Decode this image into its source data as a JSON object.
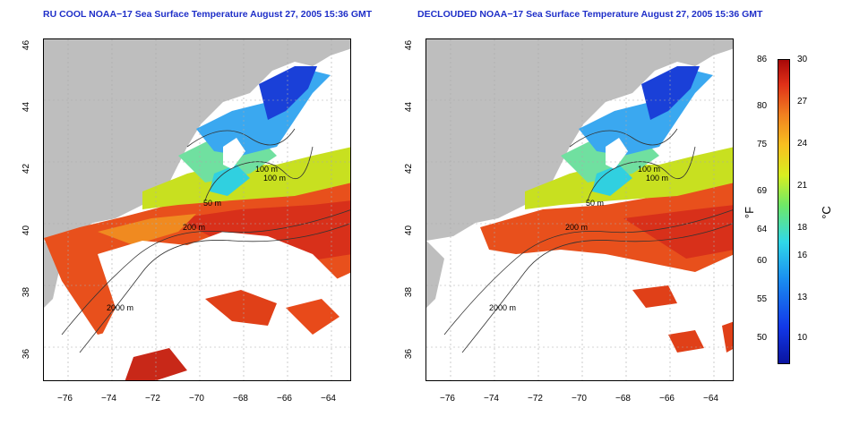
{
  "titles": {
    "left": "RU COOL NOAA−17 Sea Surface Temperature August 27, 2005 15:36 GMT",
    "right": "DECLOUDED NOAA−17 Sea Surface Temperature August 27, 2005 15:36 GMT"
  },
  "axes": {
    "lat_ticks": [
      "36",
      "38",
      "40",
      "42",
      "44",
      "46"
    ],
    "lon_ticks": [
      "−76",
      "−74",
      "−72",
      "−70",
      "−68",
      "−66",
      "−64"
    ]
  },
  "contour_labels": [
    "100 m",
    "50 m",
    "100 m",
    "200 m",
    "2000 m",
    "200 m"
  ],
  "colorbar": {
    "fahrenheit_ticks": [
      "86",
      "80",
      "75",
      "69",
      "64",
      "60",
      "55",
      "50"
    ],
    "celsius_ticks": [
      "30",
      "27",
      "24",
      "21",
      "18",
      "16",
      "13",
      "10"
    ],
    "fahrenheit_unit": "°F",
    "celsius_unit": "°C"
  },
  "colors": {
    "land": "#bebebe",
    "cloud": "#ffffff",
    "title": "#1f2fc8",
    "warm": "#e03a18",
    "cool": "#1a6ee8"
  }
}
